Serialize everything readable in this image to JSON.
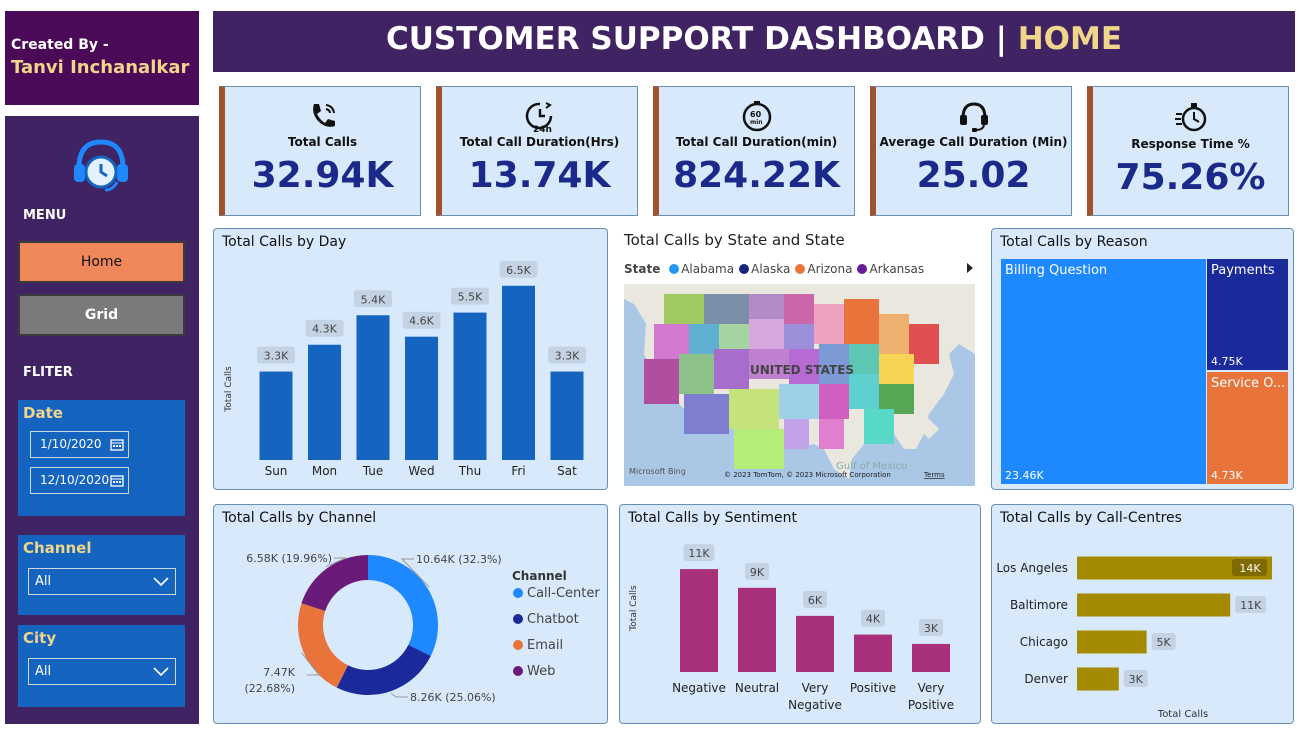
{
  "creator": {
    "line1": "Created By -",
    "line2": "Tanvi Inchanalkar"
  },
  "header": {
    "title": "CUSTOMER SUPPORT DASHBOARD | ",
    "page": "HOME"
  },
  "sidebar": {
    "menu_label": "MENU",
    "home_label": "Home",
    "grid_label": "Grid",
    "filter_label": "FLITER",
    "date": {
      "label": "Date",
      "start": "1/10/2020",
      "end": "12/10/2020"
    },
    "channel": {
      "label": "Channel",
      "value": "All"
    },
    "city": {
      "label": "City",
      "value": "All"
    }
  },
  "kpis": [
    {
      "label": "Total Calls",
      "value": "32.94K",
      "icon": "phone-icon"
    },
    {
      "label": "Total Call Duration(Hrs)",
      "value": "13.74K",
      "icon": "24h-clock-icon"
    },
    {
      "label": "Total Call Duration(min)",
      "value": "824.22K",
      "icon": "60-min-timer-icon"
    },
    {
      "label": "Average Call Duration (Min)",
      "value": "25.02",
      "icon": "headset-icon"
    },
    {
      "label": "Response Time %",
      "value": "75.26%",
      "icon": "stopwatch-icon"
    }
  ],
  "map": {
    "title": "Total Calls by State and State",
    "legend_title": "State",
    "legend": [
      {
        "name": "Alabama",
        "color": "#2196f3"
      },
      {
        "name": "Alaska",
        "color": "#1a237e"
      },
      {
        "name": "Arizona",
        "color": "#e8743b"
      },
      {
        "name": "Arkansas",
        "color": "#6a1b9a"
      }
    ],
    "country_label": "UNITED STATES",
    "gulf_label": "Gulf of Mexico",
    "attribution": "© 2023 TomTom, © 2023 Microsoft Corporation",
    "terms": "Terms",
    "bing": "Microsoft Bing"
  },
  "treemap": {
    "title": "Total Calls by Reason",
    "items": [
      {
        "name": "Billing Question",
        "value": "23.46K",
        "color": "#1e88ff"
      },
      {
        "name": "Payments",
        "value": "4.75K",
        "color": "#1a2a9a"
      },
      {
        "name": "Service O...",
        "value": "4.73K",
        "color": "#e8743b"
      }
    ]
  },
  "chart_data": [
    {
      "type": "bar",
      "title": "Total Calls by Day",
      "ylabel": "Total Calls",
      "xlabel": "",
      "categories": [
        "Sun",
        "Mon",
        "Tue",
        "Wed",
        "Thu",
        "Fri",
        "Sat"
      ],
      "values": [
        3.3,
        4.3,
        5.4,
        4.6,
        5.5,
        6.5,
        3.3
      ],
      "labels": [
        "3.3K",
        "4.3K",
        "5.4K",
        "4.6K",
        "5.5K",
        "6.5K",
        "3.3K"
      ],
      "color": "#1565c0"
    },
    {
      "type": "pie",
      "title": "Total Calls by Channel",
      "legend_title": "Channel",
      "categories": [
        "Call-Center",
        "Chatbot",
        "Email",
        "Web"
      ],
      "values": [
        10.64,
        8.26,
        7.47,
        6.58
      ],
      "labels": [
        "10.64K (32.3%)",
        "8.26K (25.06%)",
        "7.47K (22.68%)",
        "6.58K (19.96%)"
      ],
      "colors": [
        "#1e88ff",
        "#1a2a9a",
        "#e8743b",
        "#6a1b7a"
      ]
    },
    {
      "type": "bar",
      "title": "Total Calls by Sentiment",
      "ylabel": "Total Calls",
      "categories": [
        "Negative",
        "Neutral",
        "Very Negative",
        "Positive",
        "Very Positive"
      ],
      "values": [
        11,
        9,
        6,
        4,
        3
      ],
      "labels": [
        "11K",
        "9K",
        "6K",
        "4K",
        "3K"
      ],
      "color": "#a8307a"
    },
    {
      "type": "bar",
      "orientation": "horizontal",
      "title": "Total Calls by Call-Centres",
      "xlabel": "Total Calls",
      "categories": [
        "Los Angeles",
        "Baltimore",
        "Chicago",
        "Denver"
      ],
      "values": [
        14,
        11,
        5,
        3
      ],
      "labels": [
        "14K",
        "11K",
        "5K",
        "3K"
      ],
      "color": "#a38a00"
    }
  ]
}
